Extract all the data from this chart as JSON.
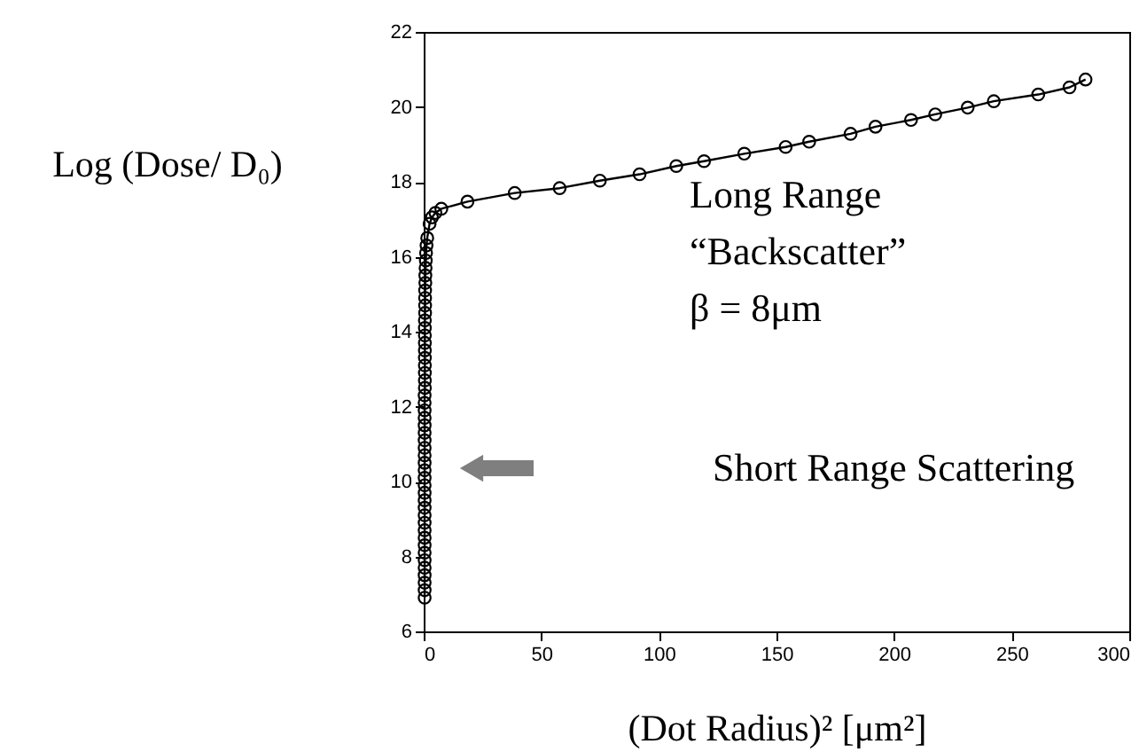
{
  "chart_data": {
    "type": "line",
    "xlabel": "(Dot Radius)² [μm²]",
    "ylabel": "Log (Dose/ D₀)",
    "xlim": [
      0,
      300
    ],
    "ylim": [
      6,
      22
    ],
    "xticks": [
      0,
      50,
      100,
      150,
      200,
      250,
      300
    ],
    "yticks": [
      6,
      8,
      10,
      12,
      14,
      16,
      18,
      20,
      22
    ],
    "grid": false,
    "marker": "circle",
    "line_style": "solid",
    "annotations": [
      "Long Range",
      "“Backscatter”",
      "β = 8μm",
      "Short Range Scattering"
    ],
    "series": [
      {
        "color": "#000000",
        "x": [
          0.4,
          0.4,
          0.4,
          0.4,
          0.4,
          0.4,
          0.4,
          0.4,
          0.4,
          0.4,
          0.4,
          0.4,
          0.4,
          0.4,
          0.4,
          0.4,
          0.4,
          0.4,
          0.4,
          0.4,
          0.4,
          0.4,
          0.4,
          0.4,
          0.4,
          0.4,
          0.4,
          0.4,
          0.5,
          0.5,
          0.5,
          0.5,
          0.5,
          0.5,
          0.5,
          0.5,
          0.5,
          0.5,
          0.6,
          0.6,
          0.6,
          0.6,
          0.7,
          0.7,
          0.8,
          0.9,
          1.0,
          1.2,
          1.5,
          2.5,
          3.5,
          5,
          7.5,
          18.6,
          38.7,
          57.8,
          74.9,
          91.8,
          107.4,
          119.2,
          136.3,
          153.9,
          163.9,
          181.5,
          192.1,
          207.2,
          217.5,
          231.3,
          242.4,
          261.3,
          274.6,
          281.4
        ],
        "values": [
          6.9,
          7.1,
          7.3,
          7.5,
          7.7,
          7.9,
          8.1,
          8.3,
          8.5,
          8.7,
          8.9,
          9.1,
          9.3,
          9.5,
          9.7,
          9.9,
          10.1,
          10.3,
          10.5,
          10.7,
          10.9,
          11.1,
          11.3,
          11.5,
          11.7,
          11.9,
          12.1,
          12.3,
          12.5,
          12.7,
          12.9,
          13.1,
          13.3,
          13.5,
          13.7,
          13.9,
          14.1,
          14.3,
          14.5,
          14.7,
          14.9,
          15.1,
          15.3,
          15.5,
          15.7,
          15.9,
          16.1,
          16.3,
          16.5,
          16.88,
          17.05,
          17.17,
          17.28,
          17.47,
          17.7,
          17.83,
          18.03,
          18.2,
          18.42,
          18.55,
          18.75,
          18.93,
          19.07,
          19.28,
          19.47,
          19.65,
          19.8,
          19.98,
          20.15,
          20.33,
          20.52,
          20.73
        ]
      }
    ]
  }
}
